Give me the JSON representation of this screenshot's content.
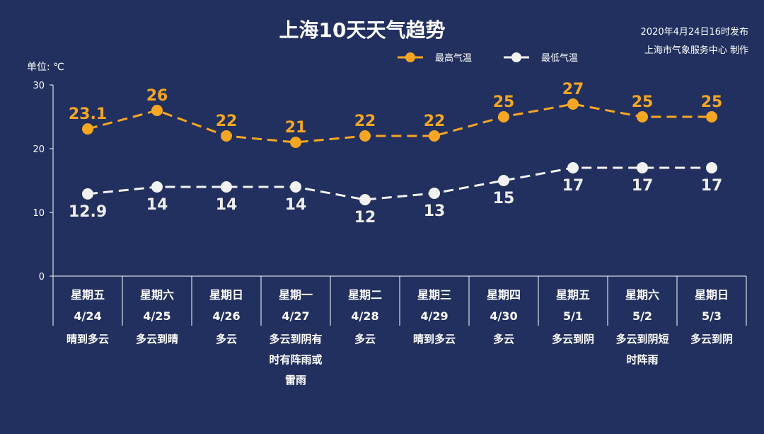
{
  "chart_data": {
    "type": "line",
    "title": "上海10天天气趋势",
    "source_line1": "2020年4月24日16时发布",
    "source_line2": "上海市气象服务中心 制作",
    "ylabel": "单位: ℃",
    "ylim": [
      0,
      30
    ],
    "yticks": [
      0,
      10,
      20,
      30
    ],
    "grid": false,
    "legend_position": "top-right",
    "categories": [
      {
        "weekday": "星期五",
        "date": "4/24",
        "weather": [
          "晴到多云"
        ]
      },
      {
        "weekday": "星期六",
        "date": "4/25",
        "weather": [
          "多云到晴"
        ]
      },
      {
        "weekday": "星期日",
        "date": "4/26",
        "weather": [
          "多云"
        ]
      },
      {
        "weekday": "星期一",
        "date": "4/27",
        "weather": [
          "多云到阴有",
          "时有阵雨或",
          "雷雨"
        ]
      },
      {
        "weekday": "星期二",
        "date": "4/28",
        "weather": [
          "多云"
        ]
      },
      {
        "weekday": "星期三",
        "date": "4/29",
        "weather": [
          "晴到多云"
        ]
      },
      {
        "weekday": "星期四",
        "date": "4/30",
        "weather": [
          "多云"
        ]
      },
      {
        "weekday": "星期五",
        "date": "5/1",
        "weather": [
          "多云到阴"
        ]
      },
      {
        "weekday": "星期六",
        "date": "5/2",
        "weather": [
          "多云到阴短",
          "时阵雨"
        ]
      },
      {
        "weekday": "星期日",
        "date": "5/3",
        "weather": [
          "多云到阴"
        ]
      }
    ],
    "series": [
      {
        "name": "最高气温",
        "color": "#f5a623",
        "values": [
          23.1,
          26,
          22,
          21,
          22,
          22,
          25,
          27,
          25,
          25
        ],
        "labels": [
          "23.1",
          "26",
          "22",
          "21",
          "22",
          "22",
          "25",
          "27",
          "25",
          "25"
        ]
      },
      {
        "name": "最低气温",
        "color": "#f2f2f2",
        "values": [
          12.9,
          14,
          14,
          14,
          12,
          13,
          15,
          17,
          17,
          17
        ],
        "labels": [
          "12.9",
          "14",
          "14",
          "14",
          "12",
          "13",
          "15",
          "17",
          "17",
          "17"
        ]
      }
    ]
  }
}
